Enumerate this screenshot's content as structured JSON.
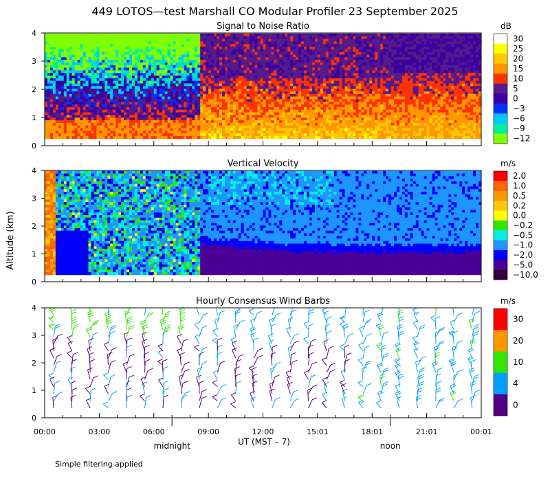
{
  "title": "449 LOTOS—test Marshall CO Modular Profiler 23 September 2025",
  "ylabel": "Altitude (km)",
  "xlabel": "UT  (MST – 7)",
  "x_ticks": [
    "00:00",
    "03:00",
    "06:00",
    "09:00",
    "12:00",
    "15:01",
    "18:01",
    "21:01",
    "00:01"
  ],
  "x_markers": [
    {
      "label": "midnight",
      "hour": 7
    },
    {
      "label": "noon",
      "hour": 19
    }
  ],
  "footnote": "Simple filtering applied",
  "chart_data": [
    {
      "type": "heatmap",
      "title": "Signal to Noise Ratio",
      "unit": "dB",
      "x_range_hours": [
        0,
        24
      ],
      "ylim": [
        0,
        4
      ],
      "y_ticks": [
        "0",
        "1",
        "2",
        "3",
        "4"
      ],
      "colorbar": [
        {
          "label": "30",
          "color": "#ffffff"
        },
        {
          "label": "25",
          "color": "#ffff00"
        },
        {
          "label": "20",
          "color": "#ffc800"
        },
        {
          "label": "15",
          "color": "#ff9600"
        },
        {
          "label": "10",
          "color": "#ff3200"
        },
        {
          "label": "5",
          "color": "#551a8b"
        },
        {
          "label": "0",
          "color": "#3c00a0"
        },
        {
          "label": "−3",
          "color": "#0032ff"
        },
        {
          "label": "−6",
          "color": "#00c8ff"
        },
        {
          "label": "−9",
          "color": "#00f0a0"
        },
        {
          "label": "−12",
          "color": "#80ff00"
        }
      ]
    },
    {
      "type": "heatmap",
      "title": "Vertical Velocity",
      "unit": "m/s",
      "x_range_hours": [
        0,
        24
      ],
      "ylim": [
        0,
        4
      ],
      "y_ticks": [
        "0",
        "1",
        "2",
        "3",
        "4"
      ],
      "colorbar": [
        {
          "label": "2.0",
          "color": "#ff0000"
        },
        {
          "label": "1.0",
          "color": "#ff6400"
        },
        {
          "label": "0.5",
          "color": "#ff9600"
        },
        {
          "label": "0.2",
          "color": "#ffc800"
        },
        {
          "label": "0.0",
          "color": "#ffff00"
        },
        {
          "label": "−0.2",
          "color": "#32e600"
        },
        {
          "label": "−0.5",
          "color": "#00f0e6"
        },
        {
          "label": "−1.0",
          "color": "#1e96ff"
        },
        {
          "label": "−2.0",
          "color": "#0000ff"
        },
        {
          "label": "−5.0",
          "color": "#4b0096"
        },
        {
          "label": "−10.0",
          "color": "#32003c"
        }
      ]
    },
    {
      "type": "wind_barbs",
      "title": "Hourly Consensus Wind Barbs",
      "unit": "m/s",
      "x_range_hours": [
        0,
        24
      ],
      "ylim": [
        0,
        4
      ],
      "y_ticks": [
        "0",
        "1",
        "2",
        "3",
        "4"
      ],
      "colorbar": [
        {
          "label": "30",
          "color": "#ff0000"
        },
        {
          "label": "20",
          "color": "#ff9600"
        },
        {
          "label": "10",
          "color": "#32e600"
        },
        {
          "label": "4",
          "color": "#00a0ff"
        },
        {
          "label": "0",
          "color": "#500082"
        }
      ]
    }
  ]
}
